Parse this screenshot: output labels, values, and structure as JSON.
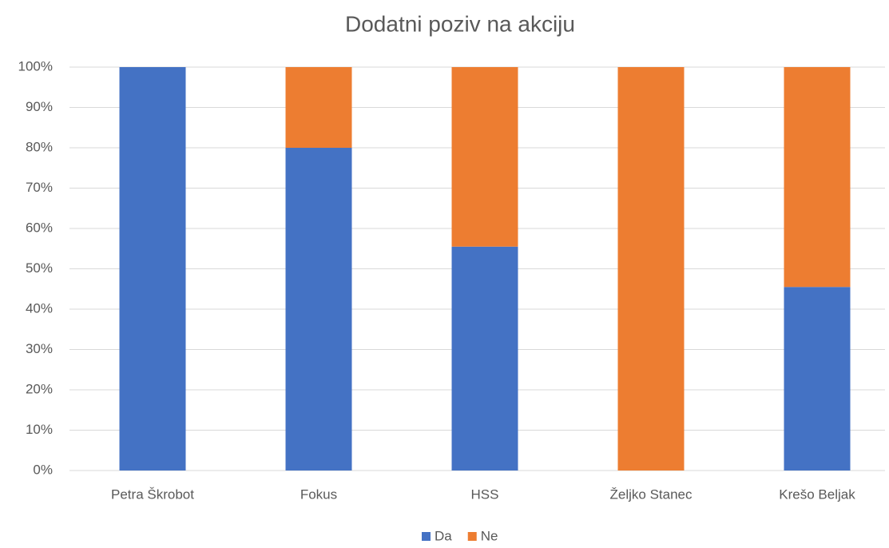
{
  "chart_data": {
    "type": "stacked_bar",
    "title": "Dodatni poziv na akciju",
    "categories": [
      "Petra Škrobot",
      "Fokus",
      "HSS",
      "Željko Stanec",
      "Krešo Beljak"
    ],
    "series": [
      {
        "name": "Da",
        "color": "#4472c4",
        "values": [
          100,
          80,
          55.5,
          0,
          45.5
        ]
      },
      {
        "name": "Ne",
        "color": "#ed7d31",
        "values": [
          0,
          20,
          44.5,
          100,
          54.5
        ]
      }
    ],
    "ylim": [
      0,
      100
    ],
    "yticks": [
      {
        "value": 0,
        "label": "0%"
      },
      {
        "value": 10,
        "label": "10%"
      },
      {
        "value": 20,
        "label": "20%"
      },
      {
        "value": 30,
        "label": "30%"
      },
      {
        "value": 40,
        "label": "40%"
      },
      {
        "value": 50,
        "label": "50%"
      },
      {
        "value": 60,
        "label": "60%"
      },
      {
        "value": 70,
        "label": "70%"
      },
      {
        "value": 80,
        "label": "80%"
      },
      {
        "value": 90,
        "label": "90%"
      },
      {
        "value": 100,
        "label": "100%"
      }
    ],
    "grid": true,
    "legend": "bottom"
  }
}
